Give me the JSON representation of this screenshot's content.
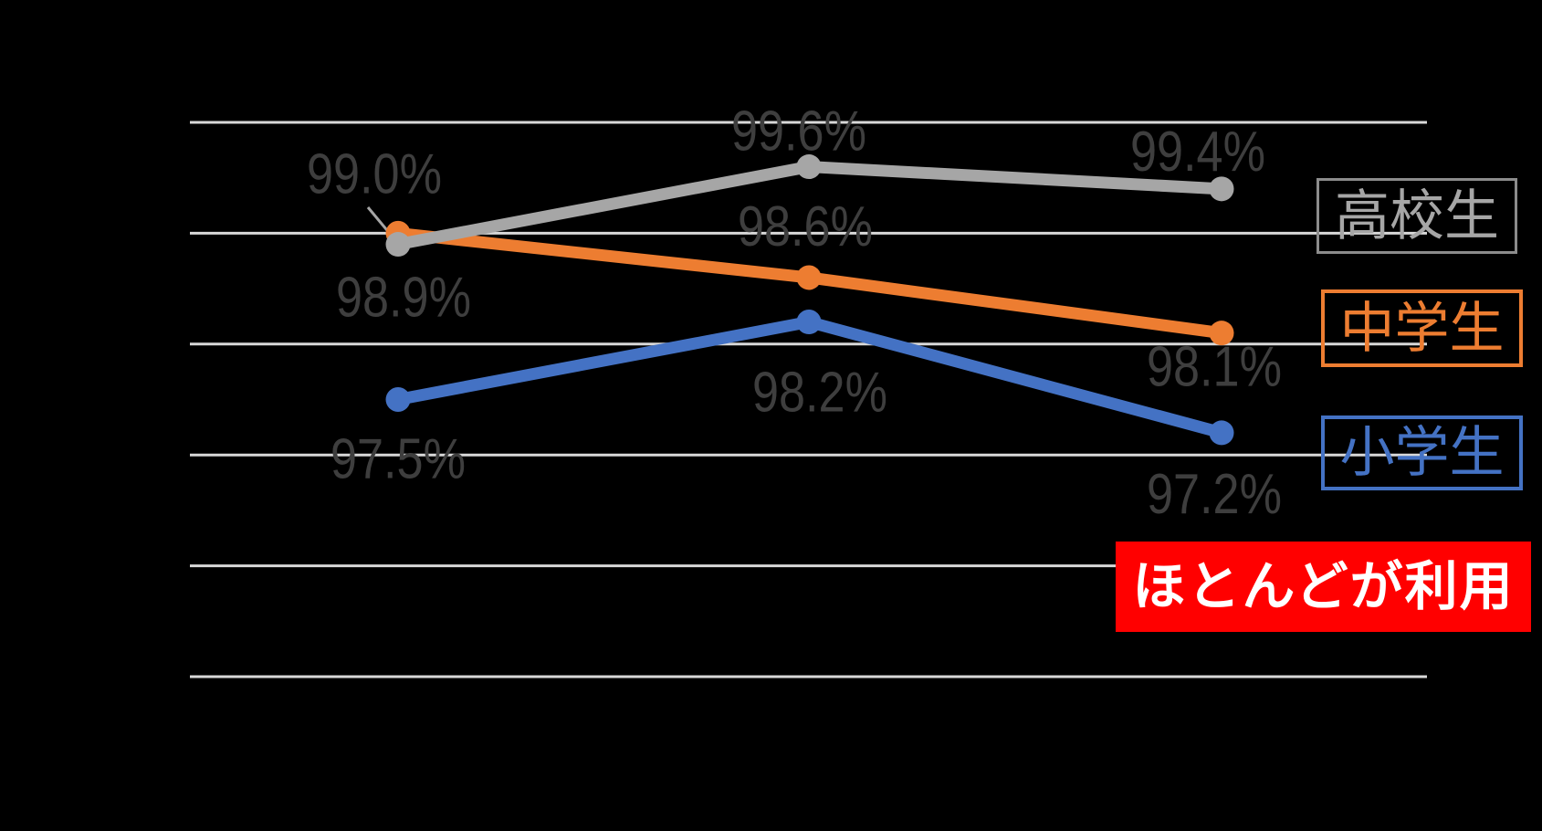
{
  "colors": {
    "background": "#000000",
    "gridline": "#D8D8D8",
    "data_label": "#3E3E3E",
    "leader_line": "#A6A6A6"
  },
  "chart_data": {
    "type": "line",
    "ylim": [
      95,
      100
    ],
    "y_gridline_step": 1,
    "grid": true,
    "legend_position": "right",
    "series": [
      {
        "name": "高校生",
        "color": "#A6A6A6",
        "values": [
          98.9,
          99.6,
          99.4
        ],
        "data_labels": [
          "98.9%",
          "99.6%",
          "99.4%"
        ]
      },
      {
        "name": "中学生",
        "color": "#ED7D31",
        "values": [
          99.0,
          98.6,
          98.1
        ],
        "data_labels": [
          "99.0%",
          "98.6%",
          "98.1%"
        ]
      },
      {
        "name": "小学生",
        "color": "#4472C4",
        "values": [
          97.5,
          98.2,
          97.2
        ],
        "data_labels": [
          "97.5%",
          "98.2%",
          "97.2%"
        ]
      }
    ],
    "annotation": {
      "label": "ほとんどが利用",
      "bg_color": "#FF0000",
      "text_color": "#FFFFFF"
    }
  },
  "legend": {
    "items": [
      {
        "label": "高校生",
        "border_color": "#8C8C8C",
        "text_color": "#A6A6A6"
      },
      {
        "label": "中学生",
        "border_color": "#ED7D31",
        "text_color": "#ED7D31"
      },
      {
        "label": "小学生",
        "border_color": "#4472C4",
        "text_color": "#4472C4"
      }
    ]
  }
}
